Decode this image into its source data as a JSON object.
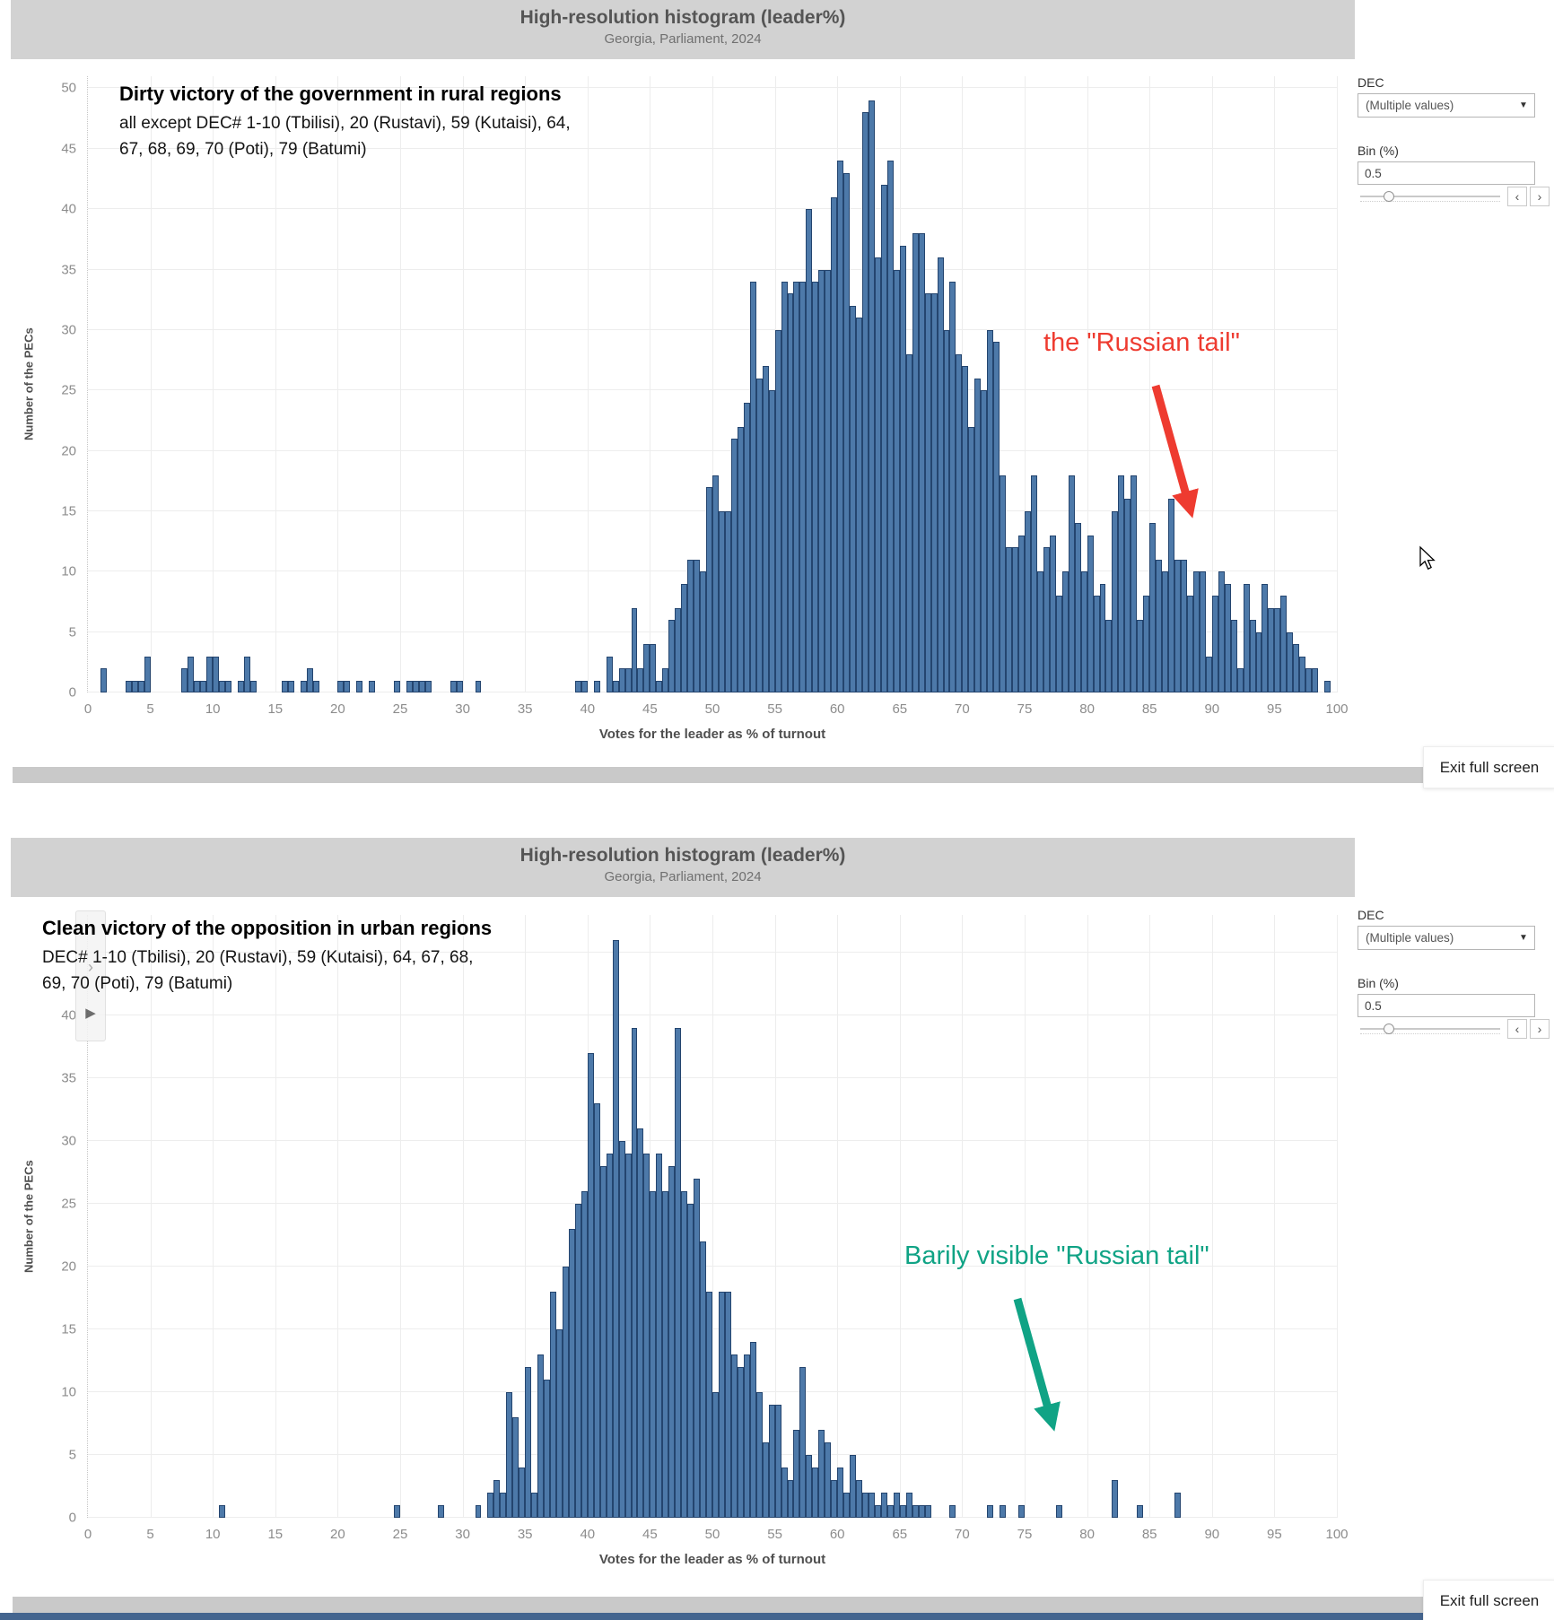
{
  "buttons": {
    "exit_full_screen": "Exit full screen"
  },
  "controls": {
    "dec_label": "DEC",
    "dec_value": "(Multiple values)",
    "bin_label": "Bin (%)",
    "bin_value": "0.5"
  },
  "icons": {
    "dropdown_arrow": "▼",
    "stepper_left": "‹",
    "stepper_right": "›",
    "pager_chevron": "›",
    "pager_play": "▶"
  },
  "colors": {
    "bar_fill": "#4d79a9",
    "bar_border": "#24456f",
    "header_bg": "#d2d2d2",
    "callout_red": "#ee3b30",
    "callout_green": "#10a385"
  },
  "chart_data": [
    {
      "type": "bar",
      "title": "High-resolution histogram (leader%)",
      "subtitle": "Georgia, Parliament, 2024",
      "annotation_title": "Dirty victory of the government in rural regions",
      "annotation_line1": "all except DEC# 1-10 (Tbilisi), 20 (Rustavi), 59 (Kutaisi), 64,",
      "annotation_line2": "67, 68, 69, 70 (Poti), 79 (Batumi)",
      "callout": "the \"Russian tail\"",
      "xlabel": "Votes for the leader as % of turnout",
      "ylabel": "Number of the PECs",
      "xlim": [
        0,
        100
      ],
      "ylim": [
        0,
        51
      ],
      "bin_width": 0.5,
      "xticks": [
        0,
        5,
        10,
        15,
        20,
        25,
        30,
        35,
        40,
        45,
        50,
        55,
        60,
        65,
        70,
        75,
        80,
        85,
        90,
        95,
        100
      ],
      "yticks": [
        0,
        5,
        10,
        15,
        20,
        25,
        30,
        35,
        40,
        45,
        50
      ],
      "grid": true,
      "bins": [
        [
          1,
          2
        ],
        [
          3,
          1
        ],
        [
          3.5,
          1
        ],
        [
          4,
          1
        ],
        [
          4.5,
          3
        ],
        [
          7.5,
          2
        ],
        [
          8,
          3
        ],
        [
          8.5,
          1
        ],
        [
          9,
          1
        ],
        [
          9.5,
          3
        ],
        [
          10,
          3
        ],
        [
          10.5,
          1
        ],
        [
          11,
          1
        ],
        [
          12,
          1
        ],
        [
          12.5,
          3
        ],
        [
          13,
          1
        ],
        [
          15.5,
          1
        ],
        [
          16,
          1
        ],
        [
          17,
          1
        ],
        [
          17.5,
          2
        ],
        [
          18,
          1
        ],
        [
          20,
          1
        ],
        [
          20.5,
          1
        ],
        [
          21.5,
          1
        ],
        [
          22.5,
          1
        ],
        [
          24.5,
          1
        ],
        [
          25.5,
          1
        ],
        [
          26,
          1
        ],
        [
          26.5,
          1
        ],
        [
          27,
          1
        ],
        [
          29,
          1
        ],
        [
          29.5,
          1
        ],
        [
          31,
          1
        ],
        [
          39,
          1
        ],
        [
          39.5,
          1
        ],
        [
          40.5,
          1
        ],
        [
          41.5,
          3
        ],
        [
          42,
          1
        ],
        [
          42.5,
          2
        ],
        [
          43,
          2
        ],
        [
          43.5,
          7
        ],
        [
          44,
          2
        ],
        [
          44.5,
          4
        ],
        [
          45,
          4
        ],
        [
          45.5,
          1
        ],
        [
          46,
          2
        ],
        [
          46.5,
          6
        ],
        [
          47,
          7
        ],
        [
          47.5,
          9
        ],
        [
          48,
          11
        ],
        [
          48.5,
          11
        ],
        [
          49,
          10
        ],
        [
          49.5,
          17
        ],
        [
          50,
          18
        ],
        [
          50.5,
          15
        ],
        [
          51,
          15
        ],
        [
          51.5,
          21
        ],
        [
          52,
          22
        ],
        [
          52.5,
          24
        ],
        [
          53,
          34
        ],
        [
          53.5,
          26
        ],
        [
          54,
          27
        ],
        [
          54.5,
          25
        ],
        [
          55,
          30
        ],
        [
          55.5,
          34
        ],
        [
          56,
          33
        ],
        [
          56.5,
          34
        ],
        [
          57,
          34
        ],
        [
          57.5,
          40
        ],
        [
          58,
          34
        ],
        [
          58.5,
          35
        ],
        [
          59,
          35
        ],
        [
          59.5,
          41
        ],
        [
          60,
          44
        ],
        [
          60.5,
          43
        ],
        [
          61,
          32
        ],
        [
          61.5,
          31
        ],
        [
          62,
          48
        ],
        [
          62.5,
          49
        ],
        [
          63,
          36
        ],
        [
          63.5,
          42
        ],
        [
          64,
          44
        ],
        [
          64.5,
          35
        ],
        [
          65,
          37
        ],
        [
          65.5,
          28
        ],
        [
          66,
          38
        ],
        [
          66.5,
          38
        ],
        [
          67,
          33
        ],
        [
          67.5,
          33
        ],
        [
          68,
          36
        ],
        [
          68.5,
          30
        ],
        [
          69,
          34
        ],
        [
          69.5,
          28
        ],
        [
          70,
          27
        ],
        [
          70.5,
          22
        ],
        [
          71,
          26
        ],
        [
          71.5,
          25
        ],
        [
          72,
          30
        ],
        [
          72.5,
          29
        ],
        [
          73,
          18
        ],
        [
          73.5,
          12
        ],
        [
          74,
          12
        ],
        [
          74.5,
          13
        ],
        [
          75,
          15
        ],
        [
          75.5,
          18
        ],
        [
          76,
          10
        ],
        [
          76.5,
          12
        ],
        [
          77,
          13
        ],
        [
          77.5,
          8
        ],
        [
          78,
          10
        ],
        [
          78.5,
          18
        ],
        [
          79,
          14
        ],
        [
          79.5,
          10
        ],
        [
          80,
          13
        ],
        [
          80.5,
          8
        ],
        [
          81,
          9
        ],
        [
          81.5,
          6
        ],
        [
          82,
          15
        ],
        [
          82.5,
          18
        ],
        [
          83,
          16
        ],
        [
          83.5,
          18
        ],
        [
          84,
          6
        ],
        [
          84.5,
          8
        ],
        [
          85,
          14
        ],
        [
          85.5,
          11
        ],
        [
          86,
          10
        ],
        [
          86.5,
          16
        ],
        [
          87,
          11
        ],
        [
          87.5,
          11
        ],
        [
          88,
          8
        ],
        [
          88.5,
          10
        ],
        [
          89,
          10
        ],
        [
          89.5,
          3
        ],
        [
          90,
          8
        ],
        [
          90.5,
          10
        ],
        [
          91,
          9
        ],
        [
          91.5,
          6
        ],
        [
          92,
          2
        ],
        [
          92.5,
          9
        ],
        [
          93,
          6
        ],
        [
          93.5,
          5
        ],
        [
          94,
          9
        ],
        [
          94.5,
          7
        ],
        [
          95,
          7
        ],
        [
          95.5,
          8
        ],
        [
          96,
          5
        ],
        [
          96.5,
          4
        ],
        [
          97,
          3
        ],
        [
          97.5,
          2
        ],
        [
          98,
          2
        ],
        [
          99,
          1
        ]
      ]
    },
    {
      "type": "bar",
      "title": "High-resolution histogram (leader%)",
      "subtitle": "Georgia, Parliament, 2024",
      "annotation_title": "Clean victory of the opposition in urban regions",
      "annotation_line1": "DEC# 1-10 (Tbilisi), 20 (Rustavi), 59 (Kutaisi), 64, 67, 68,",
      "annotation_line2": "69, 70 (Poti), 79 (Batumi)",
      "callout": "Barily visible \"Russian tail\"",
      "xlabel": "Votes for the leader as % of turnout",
      "ylabel": "Number of the PECs",
      "xlim": [
        0,
        100
      ],
      "ylim": [
        0,
        48
      ],
      "bin_width": 0.5,
      "xticks": [
        0,
        5,
        10,
        15,
        20,
        25,
        30,
        35,
        40,
        45,
        50,
        55,
        60,
        65,
        70,
        75,
        80,
        85,
        90,
        95,
        100
      ],
      "yticks": [
        0,
        5,
        10,
        15,
        20,
        25,
        30,
        35,
        40
      ],
      "grid": true,
      "bins": [
        [
          10.5,
          1
        ],
        [
          24.5,
          1
        ],
        [
          28,
          1
        ],
        [
          31,
          1
        ],
        [
          32,
          2
        ],
        [
          32.5,
          3
        ],
        [
          33,
          2
        ],
        [
          33.5,
          10
        ],
        [
          34,
          8
        ],
        [
          34.5,
          4
        ],
        [
          35,
          12
        ],
        [
          35.5,
          2
        ],
        [
          36,
          13
        ],
        [
          36.5,
          11
        ],
        [
          37,
          18
        ],
        [
          37.5,
          15
        ],
        [
          38,
          20
        ],
        [
          38.5,
          23
        ],
        [
          39,
          25
        ],
        [
          39.5,
          26
        ],
        [
          40,
          37
        ],
        [
          40.5,
          33
        ],
        [
          41,
          28
        ],
        [
          41.5,
          29
        ],
        [
          42,
          46
        ],
        [
          42.5,
          30
        ],
        [
          43,
          29
        ],
        [
          43.5,
          39
        ],
        [
          44,
          31
        ],
        [
          44.5,
          29
        ],
        [
          45,
          26
        ],
        [
          45.5,
          29
        ],
        [
          46,
          26
        ],
        [
          46.5,
          28
        ],
        [
          47,
          39
        ],
        [
          47.5,
          26
        ],
        [
          48,
          25
        ],
        [
          48.5,
          27
        ],
        [
          49,
          22
        ],
        [
          49.5,
          18
        ],
        [
          50,
          10
        ],
        [
          50.5,
          18
        ],
        [
          51,
          18
        ],
        [
          51.5,
          13
        ],
        [
          52,
          12
        ],
        [
          52.5,
          13
        ],
        [
          53,
          14
        ],
        [
          53.5,
          10
        ],
        [
          54,
          6
        ],
        [
          54.5,
          9
        ],
        [
          55,
          9
        ],
        [
          55.5,
          4
        ],
        [
          56,
          3
        ],
        [
          56.5,
          7
        ],
        [
          57,
          12
        ],
        [
          57.5,
          5
        ],
        [
          58,
          4
        ],
        [
          58.5,
          7
        ],
        [
          59,
          6
        ],
        [
          59.5,
          3
        ],
        [
          60,
          4
        ],
        [
          60.5,
          2
        ],
        [
          61,
          5
        ],
        [
          61.5,
          3
        ],
        [
          62,
          2
        ],
        [
          62.5,
          2
        ],
        [
          63,
          1
        ],
        [
          63.5,
          2
        ],
        [
          64,
          1
        ],
        [
          64.5,
          2
        ],
        [
          65,
          1
        ],
        [
          65.5,
          2
        ],
        [
          66,
          1
        ],
        [
          66.5,
          1
        ],
        [
          67,
          1
        ],
        [
          69,
          1
        ],
        [
          72,
          1
        ],
        [
          73,
          1
        ],
        [
          74.5,
          1
        ],
        [
          77.5,
          1
        ],
        [
          82,
          3
        ],
        [
          84,
          1
        ],
        [
          87,
          2
        ]
      ]
    }
  ]
}
